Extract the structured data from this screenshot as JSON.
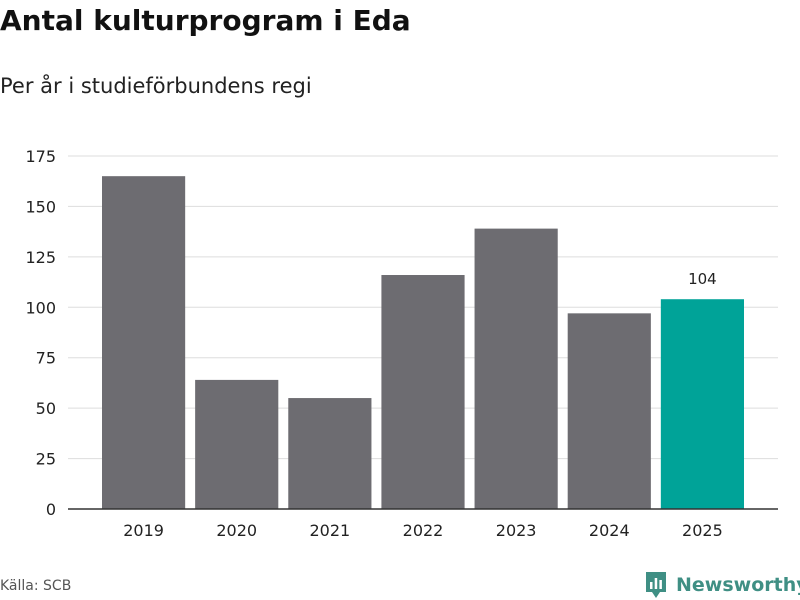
{
  "header": {
    "title": "Antal kulturprogram i Eda",
    "subtitle": "Per år i studieförbundens regi"
  },
  "footer": {
    "source": "Källa: SCB",
    "brand": "Newsworthy",
    "brand_icon": "newsworthy-logo-icon"
  },
  "colors": {
    "bar": "#6d6c71",
    "highlight": "#00a398",
    "grid": "#dddddd",
    "axis": "#333333",
    "brand": "#3f8f84"
  },
  "chart_data": {
    "type": "bar",
    "categories": [
      "2019",
      "2020",
      "2021",
      "2022",
      "2023",
      "2024",
      "2025"
    ],
    "values": [
      165,
      64,
      55,
      116,
      139,
      97,
      104
    ],
    "highlight_index": 6,
    "data_labels": [
      {
        "index": 6,
        "text": "104"
      }
    ],
    "yticks": [
      0,
      25,
      50,
      75,
      100,
      125,
      150,
      175
    ],
    "ylim": [
      0,
      175
    ],
    "xlabel": "",
    "ylabel": "",
    "grid": true,
    "legend": "none"
  }
}
